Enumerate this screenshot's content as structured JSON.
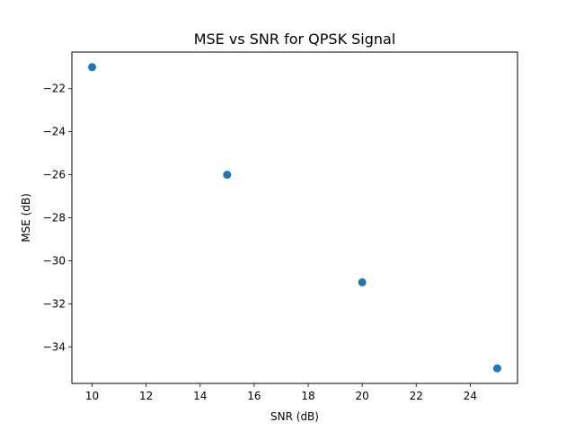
{
  "chart_data": {
    "type": "scatter",
    "title": "MSE vs SNR for QPSK Signal",
    "xlabel": "SNR (dB)",
    "ylabel": "MSE (dB)",
    "x": [
      10,
      15,
      20,
      25
    ],
    "y": [
      -21,
      -26,
      -31,
      -35
    ],
    "xlim": [
      9.25,
      25.75
    ],
    "ylim": [
      -35.7,
      -20.3
    ],
    "xticks": [
      10,
      12,
      14,
      16,
      18,
      20,
      22,
      24
    ],
    "yticks": [
      -22,
      -24,
      -26,
      -28,
      -30,
      -32,
      -34
    ],
    "xtick_labels": [
      "10",
      "12",
      "14",
      "16",
      "18",
      "20",
      "22",
      "24"
    ],
    "ytick_labels": [
      "−22",
      "−24",
      "−26",
      "−28",
      "−30",
      "−32",
      "−34"
    ],
    "grid": false,
    "marker_color": "#1f77b4"
  }
}
